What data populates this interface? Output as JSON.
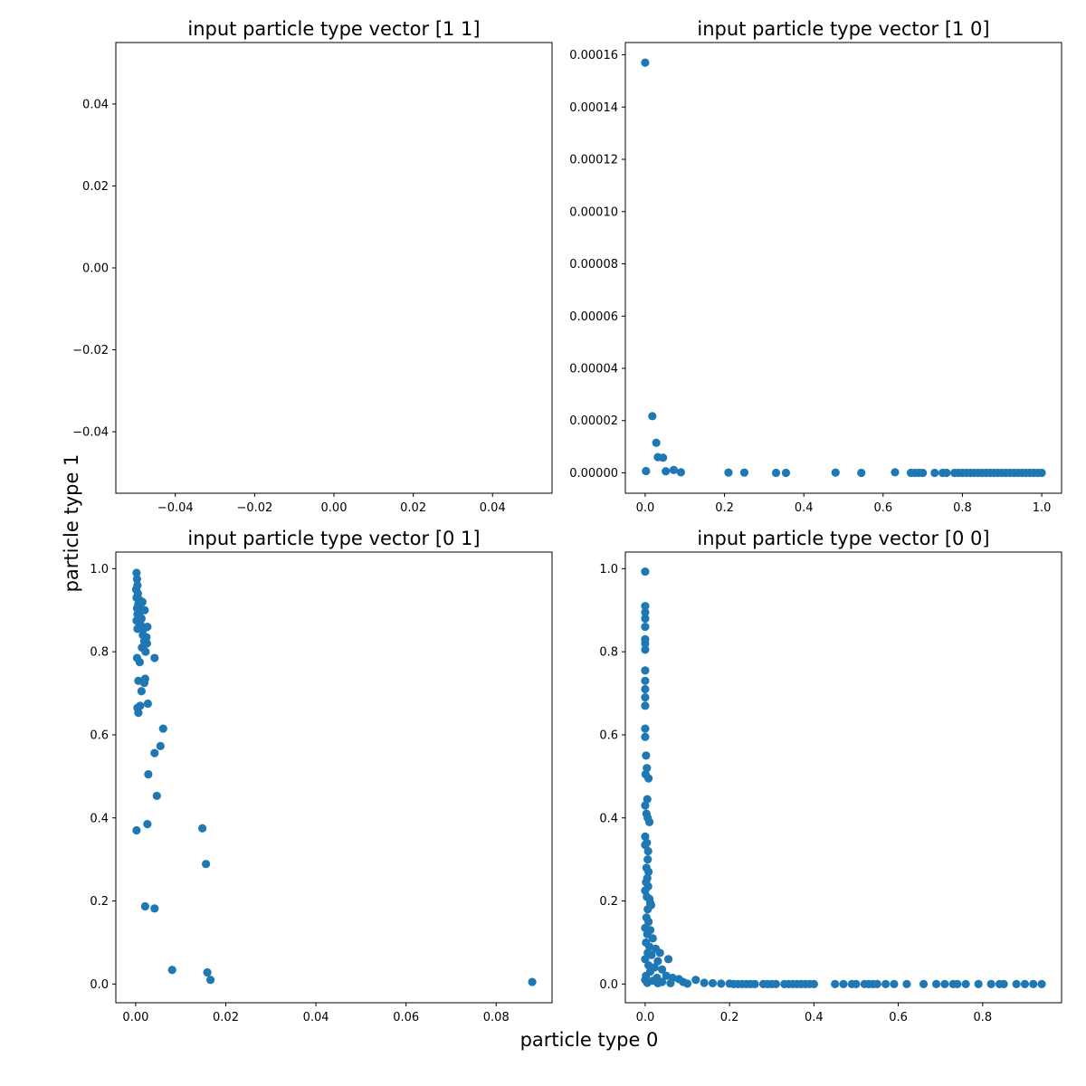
{
  "figure": {
    "xlabel": "particle type 0",
    "ylabel": "particle type 1"
  },
  "chart_data": [
    {
      "type": "scatter",
      "title": "input particle type vector [1 1]",
      "xlim": [
        -0.055,
        0.055
      ],
      "ylim": [
        -0.055,
        0.055
      ],
      "xticks": [
        -0.04,
        -0.02,
        0.0,
        0.02,
        0.04
      ],
      "xtick_labels": [
        "−0.04",
        "−0.02",
        "0.00",
        "0.02",
        "0.04"
      ],
      "yticks": [
        -0.04,
        -0.02,
        0.0,
        0.02,
        0.04
      ],
      "ytick_labels": [
        "−0.04",
        "−0.02",
        "0.00",
        "0.02",
        "0.04"
      ],
      "color": "#1f77b4",
      "points": []
    },
    {
      "type": "scatter",
      "title": "input particle type vector [1 0]",
      "xlim": [
        -0.05,
        1.05
      ],
      "ylim": [
        -7.8e-06,
        0.0001647
      ],
      "xticks": [
        0.0,
        0.2,
        0.4,
        0.6,
        0.8,
        1.0
      ],
      "xtick_labels": [
        "0.0",
        "0.2",
        "0.4",
        "0.6",
        "0.8",
        "1.0"
      ],
      "yticks": [
        0.0,
        2e-05,
        4e-05,
        6e-05,
        8e-05,
        0.0001,
        0.00012,
        0.00014,
        0.00016
      ],
      "ytick_labels": [
        "0.00000",
        "0.00002",
        "0.00004",
        "0.00006",
        "0.00008",
        "0.00010",
        "0.00012",
        "0.00014",
        "0.00016"
      ],
      "color": "#1f77b4",
      "points": [
        [
          0.0,
          0.000157
        ],
        [
          0.018,
          2.17e-05
        ],
        [
          0.028,
          1.15e-05
        ],
        [
          0.032,
          6e-06
        ],
        [
          0.045,
          5.8e-06
        ],
        [
          0.002,
          7e-07
        ],
        [
          0.052,
          6e-07
        ],
        [
          0.072,
          1.1e-06
        ],
        [
          0.09,
          2e-07
        ],
        [
          0.21,
          1e-07
        ],
        [
          0.25,
          1e-07
        ],
        [
          0.33,
          0.0
        ],
        [
          0.355,
          0.0
        ],
        [
          0.48,
          1e-07
        ],
        [
          0.545,
          0.0
        ],
        [
          0.63,
          2e-07
        ],
        [
          0.67,
          0.0
        ],
        [
          0.68,
          0.0
        ],
        [
          0.69,
          0.0
        ],
        [
          0.7,
          0.0
        ],
        [
          0.73,
          0.0
        ],
        [
          0.75,
          0.0
        ],
        [
          0.76,
          0.0
        ],
        [
          0.78,
          0.0
        ],
        [
          0.79,
          0.0
        ],
        [
          0.8,
          0.0
        ],
        [
          0.81,
          0.0
        ],
        [
          0.82,
          0.0
        ],
        [
          0.83,
          0.0
        ],
        [
          0.84,
          0.0
        ],
        [
          0.85,
          0.0
        ],
        [
          0.86,
          0.0
        ],
        [
          0.87,
          0.0
        ],
        [
          0.88,
          0.0
        ],
        [
          0.89,
          0.0
        ],
        [
          0.9,
          0.0
        ],
        [
          0.91,
          0.0
        ],
        [
          0.92,
          0.0
        ],
        [
          0.93,
          0.0
        ],
        [
          0.94,
          0.0
        ],
        [
          0.95,
          0.0
        ],
        [
          0.96,
          0.0
        ],
        [
          0.97,
          0.0
        ],
        [
          0.98,
          0.0
        ],
        [
          0.99,
          0.0
        ],
        [
          1.0,
          0.0
        ]
      ]
    },
    {
      "type": "scatter",
      "title": "input particle type vector [0 1]",
      "xlim": [
        -0.0044,
        0.0924
      ],
      "ylim": [
        -0.045,
        1.04
      ],
      "xticks": [
        0.0,
        0.02,
        0.04,
        0.06,
        0.08
      ],
      "xtick_labels": [
        "0.00",
        "0.02",
        "0.04",
        "0.06",
        "0.08"
      ],
      "yticks": [
        0.0,
        0.2,
        0.4,
        0.6,
        0.8,
        1.0
      ],
      "ytick_labels": [
        "0.0",
        "0.2",
        "0.4",
        "0.6",
        "0.8",
        "1.0"
      ],
      "color": "#1f77b4",
      "points": [
        [
          0.0002,
          0.99
        ],
        [
          0.0003,
          0.975
        ],
        [
          0.0004,
          0.96
        ],
        [
          0.0001,
          0.95
        ],
        [
          0.0005,
          0.94
        ],
        [
          0.0002,
          0.93
        ],
        [
          0.0008,
          0.925
        ],
        [
          0.0006,
          0.915
        ],
        [
          0.0003,
          0.905
        ],
        [
          0.001,
          0.91
        ],
        [
          0.0015,
          0.92
        ],
        [
          0.0012,
          0.9
        ],
        [
          0.002,
          0.9
        ],
        [
          0.0004,
          0.89
        ],
        [
          0.0009,
          0.885
        ],
        [
          0.0013,
          0.88
        ],
        [
          0.0002,
          0.875
        ],
        [
          0.0007,
          0.87
        ],
        [
          0.0011,
          0.865
        ],
        [
          0.0026,
          0.86
        ],
        [
          0.0018,
          0.855
        ],
        [
          0.0004,
          0.855
        ],
        [
          0.0016,
          0.84
        ],
        [
          0.0024,
          0.835
        ],
        [
          0.0019,
          0.825
        ],
        [
          0.0025,
          0.82
        ],
        [
          0.0014,
          0.81
        ],
        [
          0.0022,
          0.8
        ],
        [
          0.0003,
          0.785
        ],
        [
          0.0009,
          0.775
        ],
        [
          0.0042,
          0.785
        ],
        [
          0.0006,
          0.73
        ],
        [
          0.0021,
          0.735
        ],
        [
          0.0019,
          0.725
        ],
        [
          0.0013,
          0.705
        ],
        [
          0.0004,
          0.665
        ],
        [
          0.001,
          0.67
        ],
        [
          0.0027,
          0.675
        ],
        [
          0.0006,
          0.653
        ],
        [
          0.0061,
          0.615
        ],
        [
          0.0055,
          0.573
        ],
        [
          0.0042,
          0.556
        ],
        [
          0.0028,
          0.505
        ],
        [
          0.0047,
          0.453
        ],
        [
          0.0026,
          0.385
        ],
        [
          0.0002,
          0.37
        ],
        [
          0.0148,
          0.375
        ],
        [
          0.0156,
          0.289
        ],
        [
          0.0021,
          0.187
        ],
        [
          0.0042,
          0.182
        ],
        [
          0.0081,
          0.034
        ],
        [
          0.0159,
          0.028
        ],
        [
          0.0166,
          0.01
        ],
        [
          0.088,
          0.005
        ]
      ]
    },
    {
      "type": "scatter",
      "title": "input particle type vector [0 0]",
      "xlim": [
        -0.047,
        0.987
      ],
      "ylim": [
        -0.045,
        1.04
      ],
      "xticks": [
        0.0,
        0.2,
        0.4,
        0.6,
        0.8
      ],
      "xtick_labels": [
        "0.0",
        "0.2",
        "0.4",
        "0.6",
        "0.8"
      ],
      "yticks": [
        0.0,
        0.2,
        0.4,
        0.6,
        0.8,
        1.0
      ],
      "ytick_labels": [
        "0.0",
        "0.2",
        "0.4",
        "0.6",
        "0.8",
        "1.0"
      ],
      "color": "#1f77b4",
      "points": [
        [
          0.0,
          0.993
        ],
        [
          0.0,
          0.91
        ],
        [
          0.0,
          0.895
        ],
        [
          0.0,
          0.88
        ],
        [
          0.0,
          0.86
        ],
        [
          0.0,
          0.83
        ],
        [
          0.0,
          0.82
        ],
        [
          0.0,
          0.805
        ],
        [
          0.0,
          0.755
        ],
        [
          0.0,
          0.73
        ],
        [
          0.0,
          0.71
        ],
        [
          0.0,
          0.69
        ],
        [
          0.0,
          0.67
        ],
        [
          0.0,
          0.615
        ],
        [
          0.0,
          0.595
        ],
        [
          0.002,
          0.55
        ],
        [
          0.004,
          0.52
        ],
        [
          0.001,
          0.505
        ],
        [
          0.008,
          0.495
        ],
        [
          0.005,
          0.445
        ],
        [
          0.0,
          0.43
        ],
        [
          0.003,
          0.41
        ],
        [
          0.006,
          0.4
        ],
        [
          0.01,
          0.39
        ],
        [
          0.0,
          0.355
        ],
        [
          0.004,
          0.34
        ],
        [
          0.0,
          0.335
        ],
        [
          0.007,
          0.32
        ],
        [
          0.006,
          0.3
        ],
        [
          0.003,
          0.28
        ],
        [
          0.008,
          0.27
        ],
        [
          0.005,
          0.255
        ],
        [
          0.002,
          0.245
        ],
        [
          0.007,
          0.235
        ],
        [
          0.0,
          0.225
        ],
        [
          0.004,
          0.21
        ],
        [
          0.01,
          0.205
        ],
        [
          0.012,
          0.195
        ],
        [
          0.006,
          0.18
        ],
        [
          0.014,
          0.19
        ],
        [
          0.003,
          0.16
        ],
        [
          0.008,
          0.15
        ],
        [
          0.0,
          0.135
        ],
        [
          0.012,
          0.13
        ],
        [
          0.005,
          0.12
        ],
        [
          0.018,
          0.11
        ],
        [
          0.002,
          0.1
        ],
        [
          0.01,
          0.09
        ],
        [
          0.025,
          0.085
        ],
        [
          0.006,
          0.075
        ],
        [
          0.035,
          0.075
        ],
        [
          0.015,
          0.07
        ],
        [
          0.0,
          0.06
        ],
        [
          0.03,
          0.055
        ],
        [
          0.055,
          0.06
        ],
        [
          0.008,
          0.045
        ],
        [
          0.022,
          0.04
        ],
        [
          0.04,
          0.035
        ],
        [
          0.012,
          0.03
        ],
        [
          0.002,
          0.02
        ],
        [
          0.05,
          0.02
        ],
        [
          0.028,
          0.015
        ],
        [
          0.065,
          0.015
        ],
        [
          0.08,
          0.012
        ],
        [
          0.0,
          0.01
        ],
        [
          0.018,
          0.008
        ],
        [
          0.04,
          0.005
        ],
        [
          0.09,
          0.005
        ],
        [
          0.005,
          0.003
        ],
        [
          0.03,
          0.002
        ],
        [
          0.06,
          0.002
        ],
        [
          0.1,
          0.001
        ],
        [
          0.12,
          0.01
        ],
        [
          0.14,
          0.003
        ],
        [
          0.16,
          0.002
        ],
        [
          0.18,
          0.001
        ],
        [
          0.2,
          0.001
        ],
        [
          0.21,
          0.0
        ],
        [
          0.22,
          0.0
        ],
        [
          0.23,
          0.0
        ],
        [
          0.24,
          0.0
        ],
        [
          0.25,
          0.0
        ],
        [
          0.26,
          0.0
        ],
        [
          0.28,
          0.0
        ],
        [
          0.29,
          0.0
        ],
        [
          0.3,
          0.0
        ],
        [
          0.31,
          0.0
        ],
        [
          0.33,
          0.0
        ],
        [
          0.34,
          0.0
        ],
        [
          0.35,
          0.0
        ],
        [
          0.36,
          0.0
        ],
        [
          0.37,
          0.0
        ],
        [
          0.38,
          0.0
        ],
        [
          0.39,
          0.0
        ],
        [
          0.4,
          0.0
        ],
        [
          0.45,
          0.0
        ],
        [
          0.47,
          0.0
        ],
        [
          0.49,
          0.0
        ],
        [
          0.5,
          0.0
        ],
        [
          0.52,
          0.0
        ],
        [
          0.53,
          0.0
        ],
        [
          0.54,
          0.0
        ],
        [
          0.55,
          0.0
        ],
        [
          0.57,
          0.0
        ],
        [
          0.59,
          0.0
        ],
        [
          0.62,
          0.0
        ],
        [
          0.66,
          0.0
        ],
        [
          0.69,
          0.0
        ],
        [
          0.71,
          0.0
        ],
        [
          0.73,
          0.0
        ],
        [
          0.74,
          0.0
        ],
        [
          0.76,
          0.0
        ],
        [
          0.79,
          0.0
        ],
        [
          0.82,
          0.0
        ],
        [
          0.84,
          0.0
        ],
        [
          0.85,
          0.0
        ],
        [
          0.88,
          0.0
        ],
        [
          0.9,
          0.0
        ],
        [
          0.92,
          0.0
        ],
        [
          0.94,
          0.0
        ]
      ]
    }
  ]
}
